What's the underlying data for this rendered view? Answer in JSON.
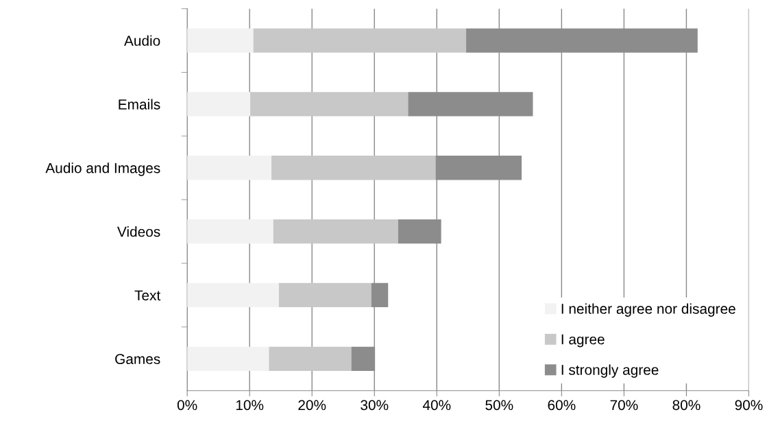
{
  "chart_data": {
    "type": "bar",
    "orientation": "horizontal",
    "stacked": true,
    "categories": [
      "Audio",
      "Emails",
      "Audio and Images",
      "Videos",
      "Text",
      "Games"
    ],
    "series": [
      {
        "name": "I neither agree nor disagree",
        "color": "#f2f2f2",
        "values": [
          10.6,
          10.1,
          13.5,
          13.8,
          14.7,
          13.1
        ]
      },
      {
        "name": "I agree",
        "color": "#c8c8c8",
        "values": [
          34.1,
          25.3,
          26.3,
          20.0,
          14.8,
          13.2
        ]
      },
      {
        "name": "I strongly agree",
        "color": "#8c8c8c",
        "values": [
          37.1,
          20.0,
          13.8,
          6.9,
          2.7,
          3.8
        ]
      }
    ],
    "xlim": [
      0,
      90
    ],
    "xticks": [
      {
        "value": 0,
        "label": "0%"
      },
      {
        "value": 10,
        "label": "10%"
      },
      {
        "value": 20,
        "label": "20%"
      },
      {
        "value": 30,
        "label": "30%"
      },
      {
        "value": 40,
        "label": "40%"
      },
      {
        "value": 50,
        "label": "50%"
      },
      {
        "value": 60,
        "label": "60%"
      },
      {
        "value": 70,
        "label": "70%"
      },
      {
        "value": 80,
        "label": "80%"
      },
      {
        "value": 90,
        "label": "90%"
      }
    ],
    "grid": "x",
    "legend": "bottom right"
  }
}
